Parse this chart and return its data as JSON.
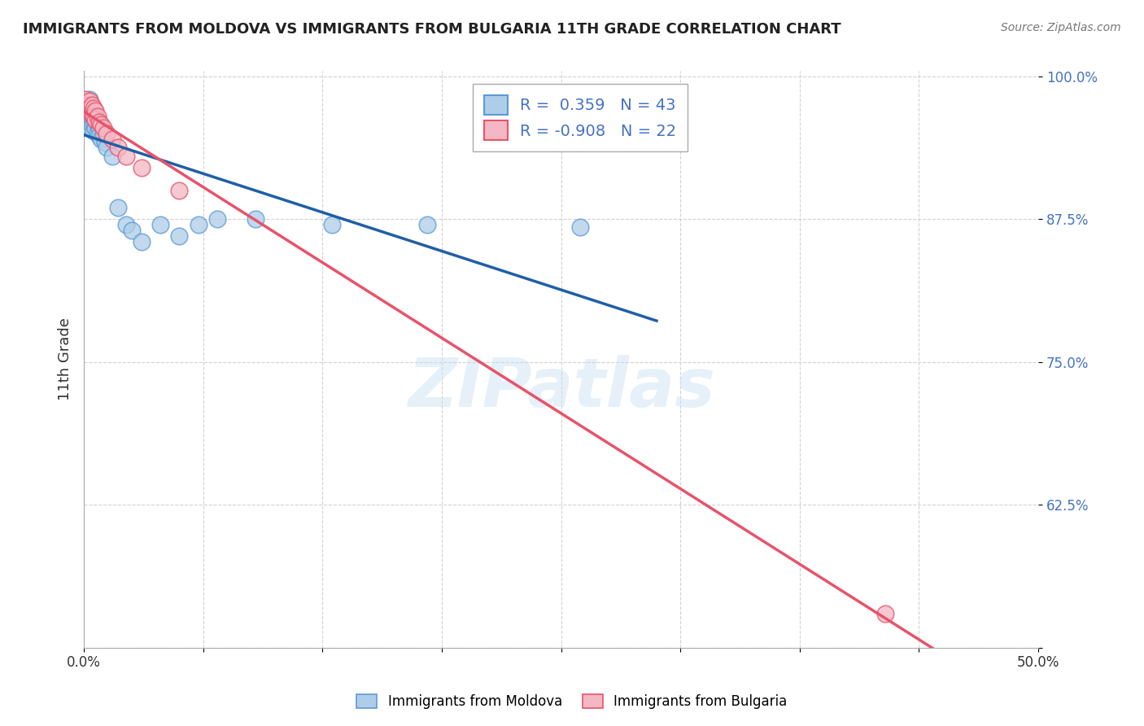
{
  "title": "IMMIGRANTS FROM MOLDOVA VS IMMIGRANTS FROM BULGARIA 11TH GRADE CORRELATION CHART",
  "source": "Source: ZipAtlas.com",
  "ylabel": "11th Grade",
  "xlim": [
    0.0,
    0.5
  ],
  "ylim": [
    0.5,
    1.005
  ],
  "xtick_positions": [
    0.0,
    0.0625,
    0.125,
    0.1875,
    0.25,
    0.3125,
    0.375,
    0.4375,
    0.5
  ],
  "xtick_labels_show": {
    "0.0": "0.0%",
    "0.50": "50.0%"
  },
  "yticks": [
    0.5,
    0.625,
    0.75,
    0.875,
    1.0
  ],
  "yticklabels": [
    "",
    "62.5%",
    "75.0%",
    "87.5%",
    "100.0%"
  ],
  "moldova_color": "#aecde8",
  "moldova_edge_color": "#5b9bd5",
  "bulgaria_color": "#f4b8c4",
  "bulgaria_edge_color": "#e8536a",
  "moldova_line_color": "#1f5fa6",
  "bulgaria_line_color": "#e8536a",
  "R_moldova": 0.359,
  "N_moldova": 43,
  "R_bulgaria": -0.908,
  "N_bulgaria": 22,
  "legend_label_moldova": "Immigrants from Moldova",
  "legend_label_bulgaria": "Immigrants from Bulgaria",
  "watermark_text": "ZIPatlas",
  "background_color": "#ffffff",
  "moldova_x": [
    0.001,
    0.001,
    0.001,
    0.002,
    0.002,
    0.002,
    0.002,
    0.002,
    0.003,
    0.003,
    0.003,
    0.003,
    0.003,
    0.003,
    0.004,
    0.004,
    0.004,
    0.005,
    0.005,
    0.005,
    0.006,
    0.006,
    0.007,
    0.007,
    0.008,
    0.008,
    0.009,
    0.01,
    0.011,
    0.012,
    0.015,
    0.018,
    0.022,
    0.025,
    0.03,
    0.04,
    0.05,
    0.06,
    0.07,
    0.09,
    0.13,
    0.18,
    0.26
  ],
  "moldova_y": [
    0.97,
    0.965,
    0.96,
    0.975,
    0.972,
    0.968,
    0.963,
    0.958,
    0.98,
    0.975,
    0.97,
    0.965,
    0.96,
    0.955,
    0.972,
    0.965,
    0.958,
    0.968,
    0.96,
    0.952,
    0.962,
    0.955,
    0.958,
    0.95,
    0.955,
    0.948,
    0.945,
    0.95,
    0.942,
    0.938,
    0.93,
    0.885,
    0.87,
    0.865,
    0.855,
    0.87,
    0.86,
    0.87,
    0.875,
    0.875,
    0.87,
    0.87,
    0.868
  ],
  "bulgaria_x": [
    0.001,
    0.002,
    0.002,
    0.003,
    0.003,
    0.004,
    0.004,
    0.005,
    0.005,
    0.006,
    0.006,
    0.007,
    0.008,
    0.009,
    0.01,
    0.012,
    0.015,
    0.018,
    0.022,
    0.03,
    0.05,
    0.42
  ],
  "bulgaria_y": [
    0.98,
    0.975,
    0.97,
    0.978,
    0.972,
    0.975,
    0.968,
    0.972,
    0.965,
    0.97,
    0.962,
    0.965,
    0.96,
    0.958,
    0.955,
    0.95,
    0.945,
    0.938,
    0.93,
    0.92,
    0.9,
    0.53
  ],
  "moldova_trend_x": [
    0.0,
    0.3
  ],
  "bulgaria_trend_x": [
    0.0,
    0.5
  ]
}
